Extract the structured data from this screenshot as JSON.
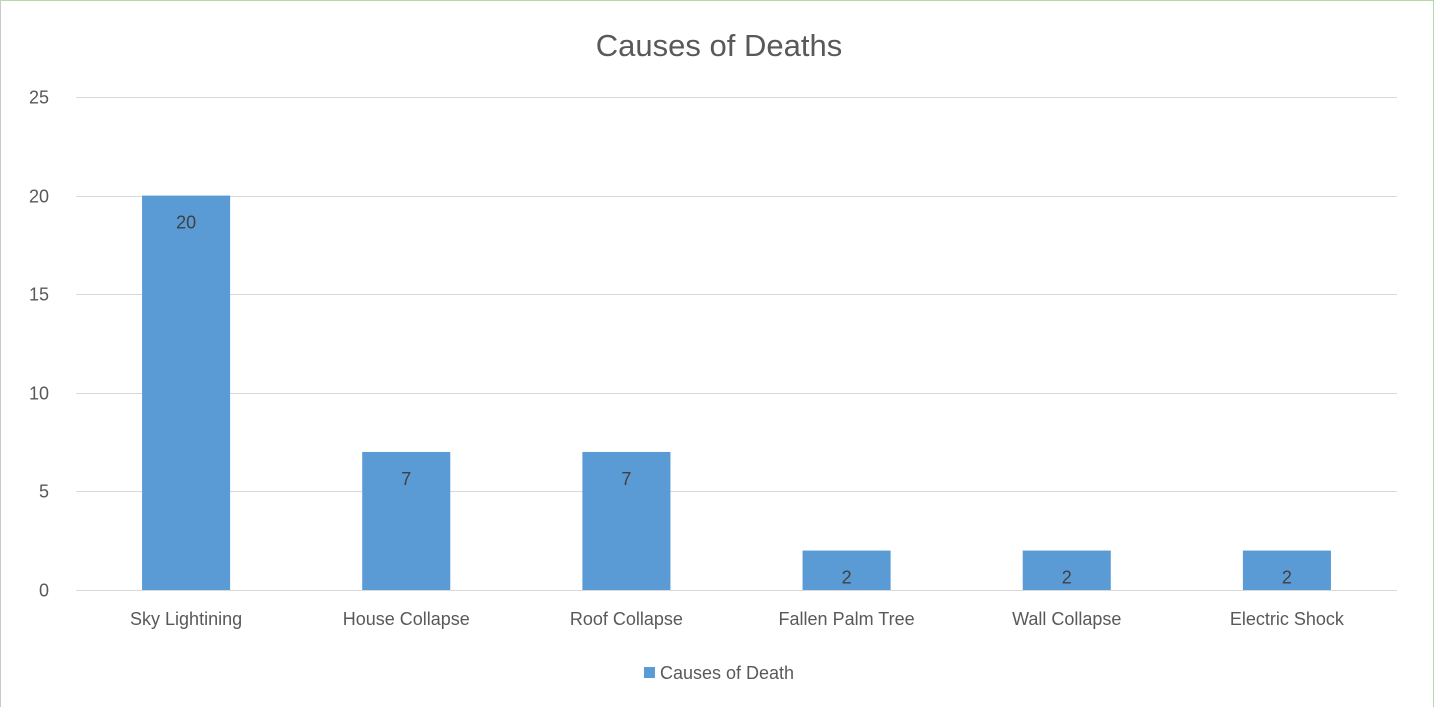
{
  "chart_data": {
    "type": "bar",
    "title": "Causes of Deaths",
    "xlabel": "",
    "ylabel": "",
    "categories": [
      "Sky Lightining",
      "House Collapse",
      "Roof Collapse",
      "Fallen Palm Tree",
      "Wall Collapse",
      "Electric Shock"
    ],
    "series": [
      {
        "name": "Causes of Death",
        "values": [
          20,
          7,
          7,
          2,
          2,
          2
        ],
        "color": "#5b9bd5"
      }
    ],
    "ylim": [
      0,
      25
    ],
    "yticks": [
      0,
      5,
      10,
      15,
      20,
      25
    ],
    "data_labels": true,
    "data_label_position": "inside-end",
    "grid": true,
    "legend_position": "bottom"
  }
}
